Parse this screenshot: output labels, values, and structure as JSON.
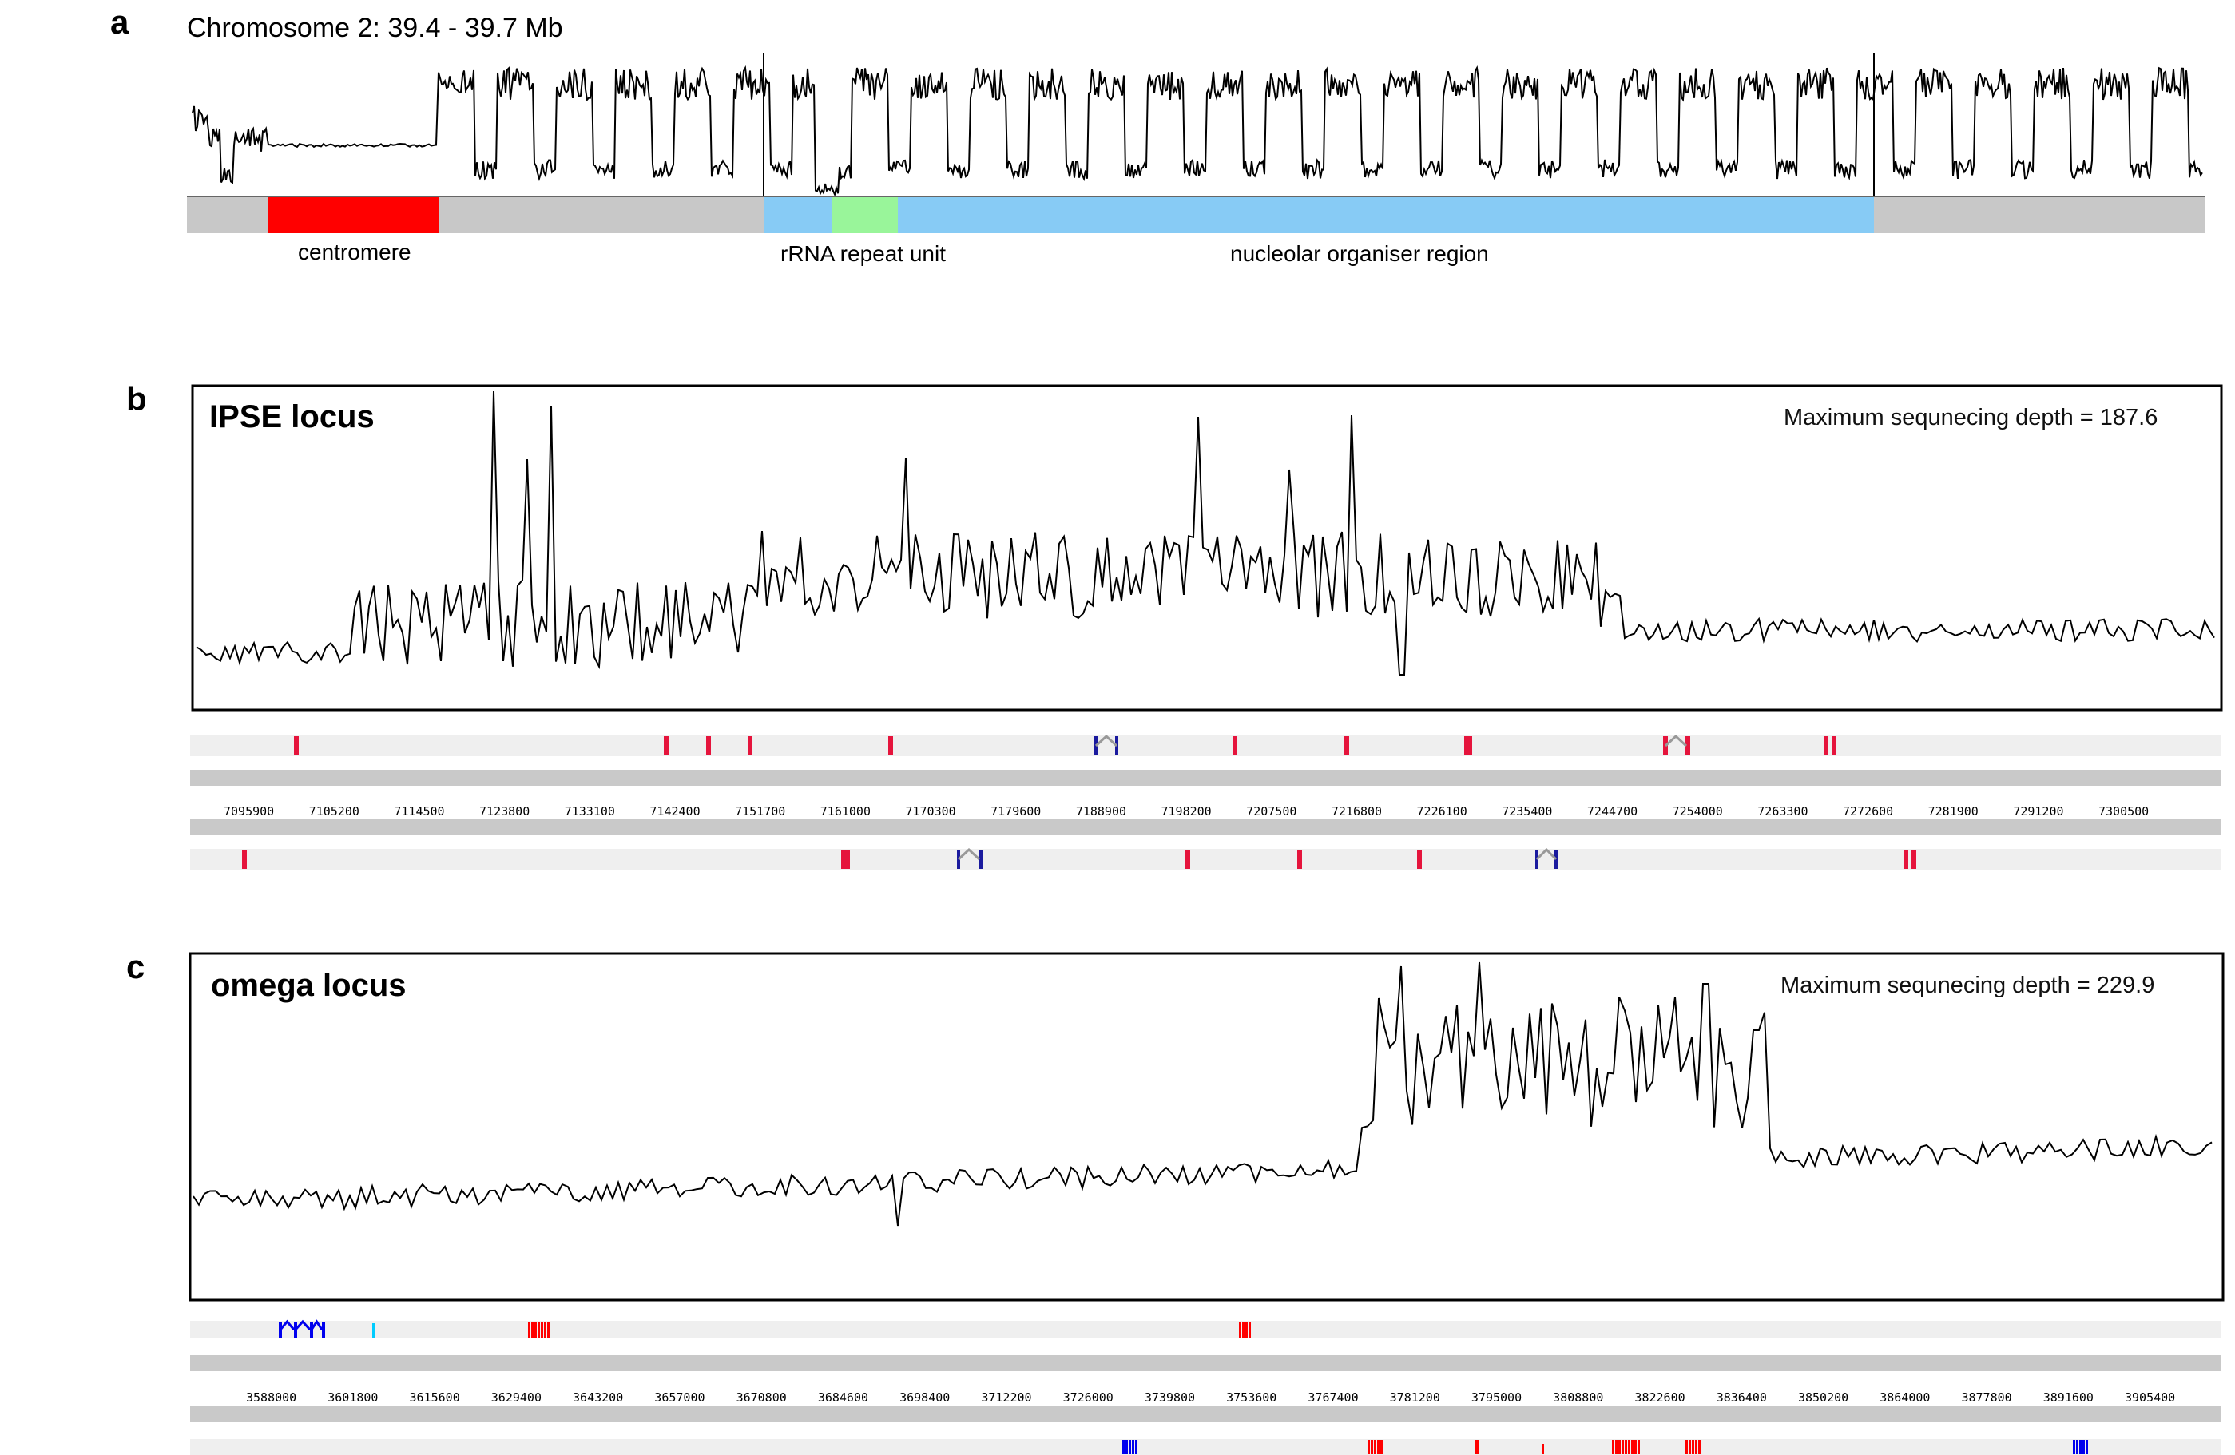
{
  "colors": {
    "centromere": "#ff0000",
    "rrna_unit": "#99f59a",
    "nor": "#87cbf5",
    "chrom_gray": "#c8c8c8",
    "track_gray": "#efefef",
    "ruler_gray": "#c9c9c9",
    "gene_red": "#e5143c",
    "gene_blue": "#1a1a9e",
    "gene_gray": "#999999",
    "omega_red": "#ff0000",
    "omega_blue": "#0000ee",
    "omega_cyan": "#00ccff"
  },
  "panel_a": {
    "letter": "a",
    "title": "Chromosome 2: 39.4 - 39.7 Mb",
    "labels": {
      "centromere": "centromere",
      "rrna": "rRNA repeat unit",
      "nor": "nucleolar organiser region"
    }
  },
  "panel_b": {
    "letter": "b",
    "title": "IPSE locus",
    "max_depth_label": "Maximum sequnecing depth = 187.6",
    "ticks": [
      "7095900",
      "7105200",
      "7114500",
      "7123800",
      "7133100",
      "7142400",
      "7151700",
      "7161000",
      "7170300",
      "7179600",
      "7188900",
      "7198200",
      "7207500",
      "7216800",
      "7226100",
      "7235400",
      "7244700",
      "7254000",
      "7263300",
      "7272600",
      "7281900",
      "7291200",
      "7300500"
    ]
  },
  "panel_c": {
    "letter": "c",
    "title": "omega locus",
    "max_depth_label": "Maximum sequnecing depth = 229.9",
    "ticks": [
      "3588000",
      "3601800",
      "3615600",
      "3629400",
      "3643200",
      "3657000",
      "3670800",
      "3684600",
      "3698400",
      "3712200",
      "3726000",
      "3739800",
      "3753600",
      "3767400",
      "3781200",
      "3795000",
      "3808800",
      "3822600",
      "3836400",
      "3850200",
      "3864000",
      "3877800",
      "3891600",
      "3905400"
    ]
  },
  "chart_data": [
    {
      "type": "line",
      "panel": "a",
      "title": "Chromosome 2: 39.4 - 39.7 Mb",
      "x_range_mb": [
        39.4,
        39.7
      ],
      "annotations": [
        "centromere",
        "rRNA repeat unit",
        "nucleolar organiser region"
      ]
    },
    {
      "type": "line",
      "panel": "b",
      "title": "IPSE locus",
      "max_depth": 187.6,
      "x_ticks": [
        7095900,
        7105200,
        7114500,
        7123800,
        7133100,
        7142400,
        7151700,
        7161000,
        7170300,
        7179600,
        7188900,
        7198200,
        7207500,
        7216800,
        7226100,
        7235400,
        7244700,
        7254000,
        7263300,
        7272600,
        7281900,
        7291200,
        7300500
      ]
    },
    {
      "type": "line",
      "panel": "c",
      "title": "omega locus",
      "max_depth": 229.9,
      "x_ticks": [
        3588000,
        3601800,
        3615600,
        3629400,
        3643200,
        3657000,
        3670800,
        3684600,
        3698400,
        3712200,
        3726000,
        3739800,
        3753600,
        3767400,
        3781200,
        3795000,
        3808800,
        3822600,
        3836400,
        3850200,
        3864000,
        3877800,
        3891600,
        3905400
      ]
    }
  ]
}
